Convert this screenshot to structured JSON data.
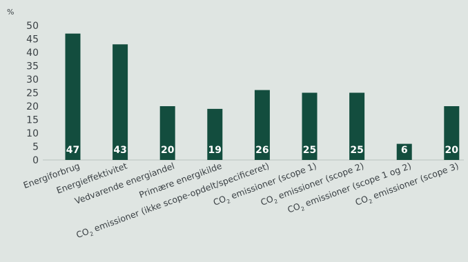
{
  "chart_data": {
    "type": "bar",
    "ylabel": "%",
    "ylim": [
      0,
      50
    ],
    "yticks": [
      "0",
      "5",
      "10",
      "15",
      "20",
      "25",
      "30",
      "35",
      "40",
      "45",
      "50"
    ],
    "categories": [
      "Energiforbrug",
      "Energieffektivitet",
      "Vedvarende energiandel",
      "Primære energikilde",
      "CO2 emissioner (ikke scope-opdelt/specificeret)",
      "CO2 emissioner (scope 1)",
      "CO2 emissioner (scope 2)",
      "CO2 emissioner (scope 1 og 2)",
      "CO2 emissioner (scope 3)"
    ],
    "values": [
      47,
      43,
      20,
      19,
      26,
      25,
      25,
      6,
      20
    ],
    "grid": false,
    "legend": "none"
  },
  "colors": {
    "bar": "#134d3e",
    "background": "#dfe5e2",
    "text": "#3a4044",
    "label": "#ffffff"
  }
}
